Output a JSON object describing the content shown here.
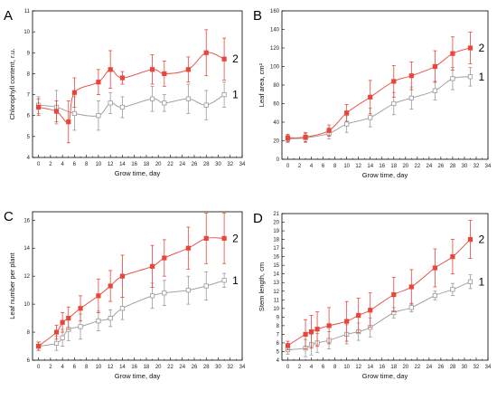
{
  "chart_data": [
    {
      "type": "line",
      "panel": "A",
      "ylabel": "Chlorophyll content, r.u.",
      "xlabel": "Grow time, day",
      "xlim": [
        -1,
        34
      ],
      "ylim": [
        4,
        11
      ],
      "xticks": [
        0,
        2,
        4,
        6,
        8,
        10,
        12,
        14,
        16,
        18,
        20,
        22,
        24,
        26,
        28,
        30,
        32,
        34
      ],
      "yticks": [
        4,
        5,
        6,
        7,
        8,
        9,
        10,
        11
      ],
      "series": [
        {
          "name": "1",
          "color": "#999999",
          "marker": "open-square",
          "x": [
            0,
            3,
            6,
            10,
            12,
            14,
            19,
            21,
            25,
            28,
            31
          ],
          "y": [
            6.5,
            6.4,
            6.1,
            6.0,
            6.6,
            6.4,
            6.8,
            6.6,
            6.8,
            6.5,
            7.0
          ],
          "err": [
            0.4,
            0.8,
            0.8,
            0.7,
            0.5,
            0.5,
            0.6,
            0.4,
            0.7,
            0.7,
            0.6
          ]
        },
        {
          "name": "2",
          "color": "#e8463a",
          "marker": "filled-square",
          "x": [
            0,
            3,
            5,
            6,
            10,
            12,
            14,
            19,
            21,
            25,
            28,
            31
          ],
          "y": [
            6.4,
            6.2,
            5.7,
            7.1,
            7.6,
            8.2,
            7.8,
            8.2,
            8.0,
            8.2,
            9.0,
            8.7
          ],
          "err": [
            0.4,
            0.5,
            1.0,
            0.7,
            0.6,
            0.9,
            0.3,
            0.7,
            0.6,
            0.6,
            1.1,
            1.0
          ]
        }
      ]
    },
    {
      "type": "line",
      "panel": "B",
      "ylabel": "Leaf area, cm²",
      "xlabel": "Grow time, day",
      "xlim": [
        -1,
        34
      ],
      "ylim": [
        0,
        160
      ],
      "xticks": [
        0,
        2,
        4,
        6,
        8,
        10,
        12,
        14,
        16,
        18,
        20,
        22,
        24,
        26,
        28,
        30,
        32,
        34
      ],
      "yticks": [
        0,
        20,
        40,
        60,
        80,
        100,
        120,
        140,
        160
      ],
      "series": [
        {
          "name": "1",
          "color": "#999999",
          "marker": "open-square",
          "x": [
            0,
            3,
            7,
            10,
            14,
            18,
            21,
            25,
            28,
            31
          ],
          "y": [
            22,
            23,
            28,
            38,
            45,
            60,
            66,
            74,
            87,
            89
          ],
          "err": [
            4,
            5,
            6,
            9,
            10,
            12,
            12,
            10,
            12,
            10
          ]
        },
        {
          "name": "2",
          "color": "#e8463a",
          "marker": "filled-square",
          "x": [
            0,
            3,
            7,
            10,
            14,
            18,
            21,
            25,
            28,
            31
          ],
          "y": [
            23,
            24,
            31,
            50,
            67,
            84,
            90,
            100,
            114,
            120
          ],
          "err": [
            4,
            5,
            6,
            9,
            18,
            17,
            15,
            17,
            18,
            17
          ]
        }
      ]
    },
    {
      "type": "line",
      "panel": "C",
      "ylabel": "Leaf number per plant",
      "xlabel": "Grow time, day",
      "xlim": [
        -1,
        34
      ],
      "ylim": [
        6,
        16.6
      ],
      "xticks": [
        0,
        2,
        4,
        6,
        8,
        10,
        12,
        14,
        16,
        18,
        20,
        22,
        24,
        26,
        28,
        30,
        32,
        34
      ],
      "yticks": [
        6,
        8,
        10,
        12,
        14,
        16
      ],
      "series": [
        {
          "name": "1",
          "color": "#999999",
          "marker": "open-square",
          "x": [
            0,
            3,
            4,
            5,
            7,
            10,
            12,
            14,
            19,
            21,
            25,
            28,
            31
          ],
          "y": [
            7.0,
            7.2,
            7.6,
            8.2,
            8.4,
            8.8,
            9.0,
            9.7,
            10.6,
            10.8,
            11.0,
            11.3,
            11.7
          ],
          "err": [
            0.3,
            0.5,
            0.6,
            0.8,
            0.9,
            0.7,
            0.6,
            0.8,
            0.9,
            0.9,
            1.0,
            1.0,
            0.5
          ]
        },
        {
          "name": "2",
          "color": "#e8463a",
          "marker": "filled-square",
          "x": [
            0,
            3,
            4,
            5,
            7,
            10,
            12,
            14,
            19,
            21,
            25,
            28,
            31
          ],
          "y": [
            7.0,
            8.0,
            8.7,
            9.0,
            9.7,
            10.6,
            11.3,
            12.0,
            12.7,
            13.3,
            14.0,
            14.7,
            14.7
          ],
          "err": [
            0.3,
            0.5,
            0.7,
            0.8,
            0.9,
            1.2,
            1.1,
            1.5,
            1.5,
            1.3,
            1.5,
            1.8,
            1.8
          ]
        }
      ]
    },
    {
      "type": "line",
      "panel": "D",
      "ylabel": "Stem length, cm",
      "xlabel": "Grow time, day",
      "xlim": [
        -1,
        34
      ],
      "ylim": [
        4,
        21
      ],
      "xticks": [
        0,
        2,
        4,
        6,
        8,
        10,
        12,
        14,
        16,
        18,
        20,
        22,
        24,
        26,
        28,
        30,
        32,
        34
      ],
      "yticks": [
        4,
        5,
        6,
        7,
        8,
        9,
        10,
        11,
        12,
        13,
        14,
        15,
        16,
        17,
        18,
        19,
        20,
        21
      ],
      "series": [
        {
          "name": "1",
          "color": "#999999",
          "marker": "open-square",
          "x": [
            0,
            3,
            4,
            5,
            7,
            10,
            12,
            14,
            18,
            21,
            25,
            28,
            31
          ],
          "y": [
            5.2,
            5.4,
            5.8,
            6.0,
            6.3,
            7.0,
            7.3,
            7.8,
            9.5,
            10.1,
            11.5,
            12.2,
            13.1
          ],
          "err": [
            0.5,
            1.0,
            1.2,
            1.1,
            1.0,
            1.1,
            1.0,
            1.1,
            0.6,
            0.5,
            0.5,
            0.7,
            0.8
          ]
        },
        {
          "name": "2",
          "color": "#e8463a",
          "marker": "filled-square",
          "x": [
            0,
            3,
            4,
            5,
            7,
            10,
            12,
            14,
            18,
            21,
            25,
            28,
            31
          ],
          "y": [
            5.7,
            7.0,
            7.3,
            7.6,
            8.0,
            8.5,
            9.2,
            9.8,
            11.6,
            12.5,
            14.7,
            16.0,
            18.0
          ],
          "err": [
            0.5,
            1.7,
            1.9,
            2.0,
            2.1,
            2.3,
            2.0,
            2.0,
            2.0,
            2.0,
            2.2,
            2.0,
            2.2
          ]
        }
      ]
    }
  ]
}
